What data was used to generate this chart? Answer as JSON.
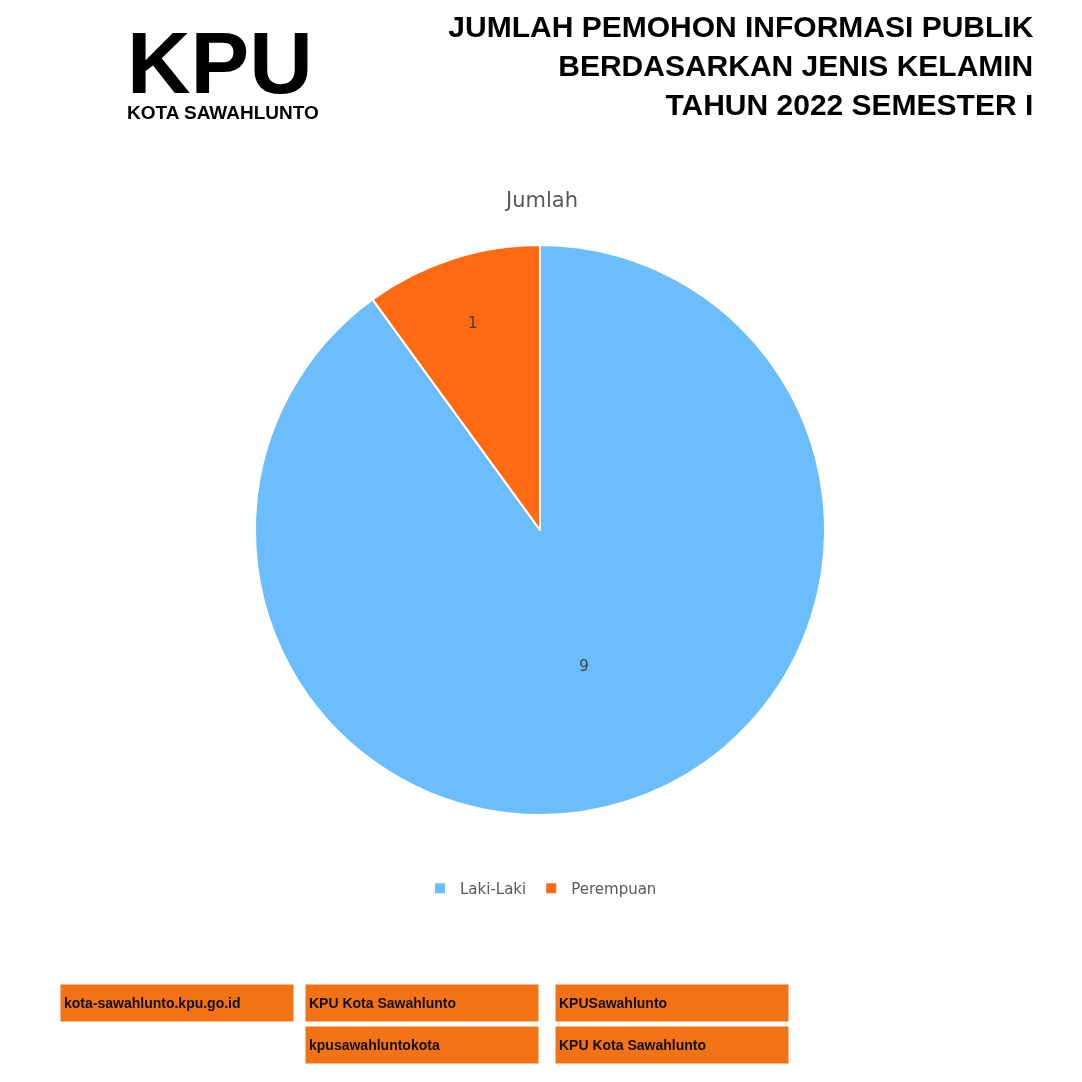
{
  "chart_data": {
    "type": "pie",
    "title": "JUMLAH PEMOHON INFORMASI PUBLIK\nBERDASARKAN JENIS KELAMIN\nTAHUN 2022 SEMESTER I",
    "subtitle": "Jumlah",
    "categories": [
      "Laki-Laki",
      "Perempuan"
    ],
    "values": [
      9,
      1
    ],
    "colors": [
      "#6bbefb",
      "#ff6a12"
    ],
    "data_labels": true,
    "legend": "bottom",
    "annotations": [
      "KPU",
      "KOTA SAWAHLUNTO",
      "kota-sawahlunto.kpu.go.id",
      "KPU Kota Sawahlunto",
      "KPUSawahlunto",
      "kpusawahluntokota",
      "KPU Kota Sawahlunto"
    ]
  }
}
